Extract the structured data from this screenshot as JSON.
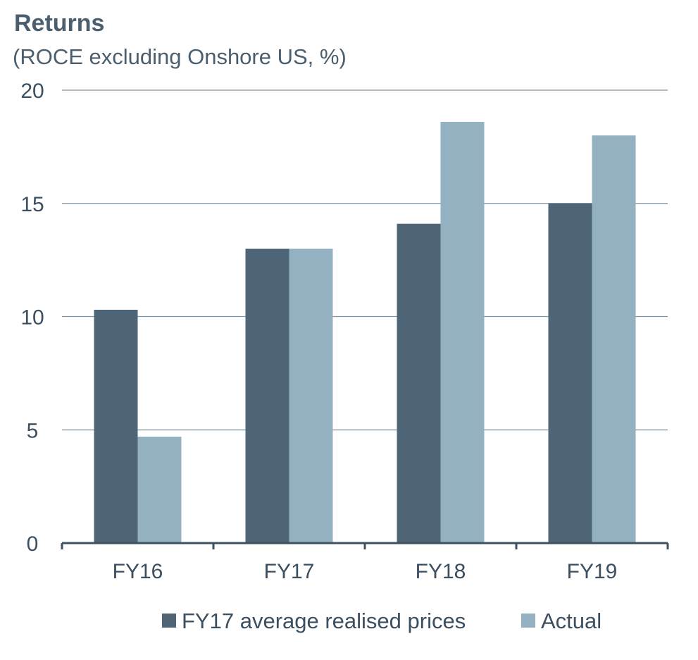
{
  "chart_data": {
    "type": "bar",
    "title": "Returns",
    "subtitle": "(ROCE excluding Onshore US, %)",
    "categories": [
      "FY16",
      "FY17",
      "FY18",
      "FY19"
    ],
    "series": [
      {
        "name": "FY17 average realised prices",
        "values": [
          10.3,
          13.0,
          14.1,
          15.0
        ],
        "color": "#4d6577"
      },
      {
        "name": "Actual",
        "values": [
          4.7,
          13.0,
          18.6,
          18.0
        ],
        "color": "#94b1c2"
      }
    ],
    "xlabel": "",
    "ylabel": "",
    "ylim": [
      0,
      20
    ],
    "yticks": [
      0,
      5,
      10,
      15,
      20
    ],
    "grid": true,
    "legend_position": "bottom-center",
    "colors": {
      "text": "#3b4f60",
      "gridline": "#7d8f9c",
      "axis": "#3f5262"
    }
  }
}
